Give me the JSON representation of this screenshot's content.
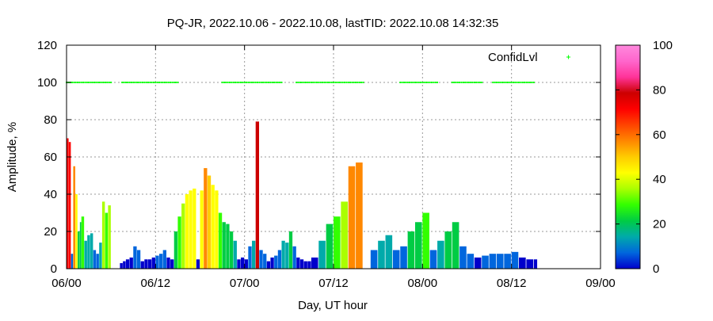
{
  "chart_data": {
    "type": "area",
    "title": "PQ-JR, 2022.10.06 - 2022.10.08, lastTID: 2022.10.08 14:32:35",
    "xlabel": "Day, UT hour",
    "ylabel": "Amplitude, %",
    "x_ticks": [
      "06/00",
      "06/12",
      "07/00",
      "07/12",
      "08/00",
      "08/12",
      "09/00"
    ],
    "x_range_hours": [
      0,
      72
    ],
    "ylim": [
      0,
      120
    ],
    "y_ticks": [
      "0",
      "20",
      "40",
      "60",
      "80",
      "100",
      "120"
    ],
    "grid": true,
    "legend": {
      "label": "ConfidLvl",
      "position": "top-right",
      "marker_color": "#00ff00"
    },
    "colorbar": {
      "range": [
        0,
        100
      ],
      "ticks": [
        "0",
        "20",
        "40",
        "60",
        "80",
        "100"
      ],
      "colors": [
        "#0000cc",
        "#0066dd",
        "#00aaaa",
        "#00cc44",
        "#33ff00",
        "#aaff00",
        "#ffff00",
        "#ffcc00",
        "#ff8800",
        "#ff4400",
        "#ff0000",
        "#cc0000",
        "#ff3399",
        "#ff66cc",
        "#ff88dd"
      ]
    },
    "confidence_level": {
      "value": 100,
      "intervals_hours": [
        [
          0,
          6
        ],
        [
          7.5,
          15
        ],
        [
          21,
          29
        ],
        [
          31,
          40
        ],
        [
          45,
          50
        ],
        [
          52,
          56
        ],
        [
          57.5,
          63
        ]
      ]
    },
    "amplitude_series": {
      "x_hours": [
        0,
        0.3,
        0.6,
        0.9,
        1.2,
        1.5,
        1.8,
        2.0,
        2.4,
        2.8,
        3.2,
        3.6,
        4.0,
        4.4,
        4.8,
        5.2,
        5.6,
        6.0,
        6.4,
        6.8,
        7.2,
        7.6,
        8.0,
        8.5,
        9.0,
        9.5,
        10.0,
        10.5,
        11.0,
        11.5,
        12.0,
        12.5,
        13.0,
        13.5,
        14.0,
        14.5,
        15.0,
        15.5,
        16.0,
        16.5,
        17.0,
        17.5,
        18.0,
        18.5,
        19.0,
        19.5,
        20.0,
        20.5,
        21.0,
        21.5,
        22.0,
        22.5,
        23.0,
        23.5,
        24.0,
        24.5,
        25.0,
        25.5,
        26.0,
        26.5,
        27.0,
        27.5,
        28.0,
        28.5,
        29.0,
        29.5,
        30.0,
        30.5,
        31.0,
        31.5,
        32.0,
        32.5,
        33.0,
        34.0,
        35.0,
        36.0,
        37.0,
        38.0,
        39.0,
        40.0,
        41.0,
        42.0,
        43.0,
        44.0,
        45.0,
        46.0,
        47.0,
        48.0,
        49.0,
        50.0,
        51.0,
        52.0,
        53.0,
        54.0,
        55.0,
        56.0,
        57.0,
        58.0,
        59.0,
        60.0,
        61.0,
        62.0,
        63.0
      ],
      "y": [
        70,
        68,
        8,
        55,
        40,
        20,
        25,
        28,
        15,
        18,
        19,
        10,
        8,
        14,
        36,
        30,
        34,
        0,
        0,
        0,
        3,
        4,
        5,
        6,
        12,
        10,
        4,
        5,
        5,
        6,
        7,
        8,
        10,
        6,
        5,
        20,
        28,
        35,
        40,
        42,
        43,
        5,
        42,
        54,
        50,
        45,
        42,
        30,
        25,
        24,
        20,
        15,
        5,
        6,
        5,
        12,
        15,
        79,
        10,
        8,
        4,
        6,
        7,
        10,
        15,
        14,
        20,
        12,
        6,
        5,
        4,
        4,
        6,
        15,
        24,
        28,
        36,
        55,
        57,
        0,
        10,
        15,
        18,
        10,
        12,
        20,
        25,
        30,
        10,
        15,
        20,
        25,
        12,
        8,
        6,
        7,
        8,
        8,
        8,
        9,
        6,
        5,
        5
      ]
    }
  }
}
